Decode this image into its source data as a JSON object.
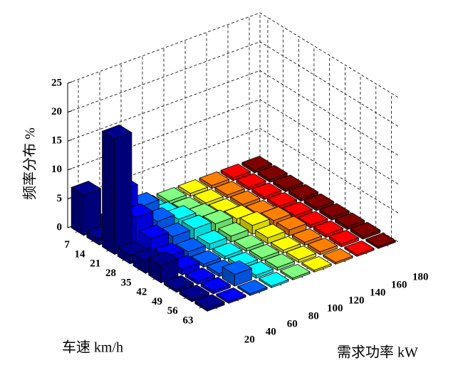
{
  "chart_data": {
    "type": "bar3",
    "xlabel": "车速  km/h",
    "ylabel": "需求功率  kW",
    "zlabel": "频率分布  %",
    "categories": [
      7,
      14,
      21,
      28,
      35,
      42,
      49,
      56,
      63
    ],
    "series": [
      {
        "name": "20",
        "color": "#00008f",
        "values": [
          7,
          1,
          20,
          1.5,
          2,
          3,
          0.5,
          0.5,
          0.5
        ]
      },
      {
        "name": "40",
        "color": "#0000ff",
        "values": [
          0.5,
          8,
          5,
          3,
          1.5,
          1,
          0.5,
          0.5,
          0.3
        ]
      },
      {
        "name": "60",
        "color": "#0060ff",
        "values": [
          0.5,
          4,
          3,
          2,
          1,
          0.5,
          0.5,
          2,
          0.3
        ]
      },
      {
        "name": "80",
        "color": "#00ffff",
        "values": [
          0.5,
          1,
          2,
          2,
          1,
          0.5,
          0.5,
          0.5,
          0.3
        ]
      },
      {
        "name": "100",
        "color": "#80ff80",
        "values": [
          0.5,
          0.5,
          1,
          1.5,
          1,
          0.5,
          0.5,
          0.5,
          0.3
        ]
      },
      {
        "name": "120",
        "color": "#ffff00",
        "values": [
          0.5,
          0.5,
          0.5,
          1,
          1.5,
          1,
          0.5,
          0.5,
          0.3
        ]
      },
      {
        "name": "140",
        "color": "#ff8000",
        "values": [
          0.5,
          0.5,
          0.5,
          0.5,
          1,
          1,
          0.5,
          0.5,
          0.3
        ]
      },
      {
        "name": "160",
        "color": "#ff0000",
        "values": [
          0.5,
          0.5,
          0.5,
          0.5,
          0.5,
          0.5,
          0.5,
          0.5,
          0.3
        ]
      },
      {
        "name": "180",
        "color": "#800000",
        "values": [
          0.5,
          0.5,
          0.5,
          0.5,
          0.5,
          0.5,
          0.5,
          0.5,
          0.3
        ]
      }
    ],
    "zlim": [
      0,
      25
    ],
    "zticks": [
      0,
      5,
      10,
      15,
      20,
      25
    ],
    "grid": true
  }
}
